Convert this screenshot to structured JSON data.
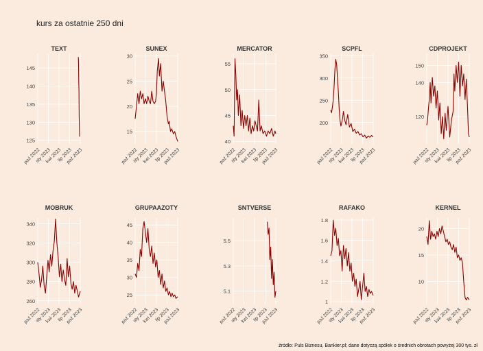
{
  "title": "kurs za ostatnie 250 dni",
  "source": "źródło: Puls Biznesu, Bankier.pl; dane dotyczą spółek o średnich obrotach powyżej 300 tys. zł",
  "colors": {
    "line": "#8b0000",
    "background": "#faebde",
    "grid": "#ffffff"
  },
  "x_tick_labels": [
    "paź 2022",
    "sty 2023",
    "kwi 2023",
    "lip 2023",
    "paź 2023"
  ],
  "chart_data": [
    {
      "type": "line",
      "title": "TEXT",
      "ylim": [
        124,
        149
      ],
      "yticks": [
        125,
        130,
        135,
        140,
        145
      ],
      "series": [
        {
          "x": [
            0.955,
            0.96,
            0.965,
            0.97,
            0.975,
            0.98,
            0.985
          ],
          "y": [
            148,
            146,
            141,
            139,
            132,
            128,
            126
          ]
        }
      ]
    },
    {
      "type": "line",
      "title": "SUNEX",
      "ylim": [
        12.5,
        30.5
      ],
      "yticks": [
        15,
        20,
        25,
        30
      ],
      "series": [
        {
          "x": [
            0,
            0.03,
            0.06,
            0.09,
            0.12,
            0.15,
            0.18,
            0.21,
            0.24,
            0.27,
            0.3,
            0.33,
            0.36,
            0.39,
            0.42,
            0.45,
            0.48,
            0.5,
            0.52,
            0.55,
            0.57,
            0.6,
            0.63,
            0.66,
            0.69,
            0.72,
            0.75,
            0.78,
            0.8,
            0.83,
            0.86,
            0.9,
            0.93,
            0.96,
            1.0
          ],
          "y": [
            17.5,
            20,
            22.5,
            20.5,
            23,
            21.5,
            22.5,
            20.5,
            21.5,
            20.5,
            22,
            21,
            20.5,
            23,
            21,
            20.5,
            21,
            22.5,
            27,
            29.5,
            26,
            28.5,
            23,
            25,
            23,
            21,
            18,
            16.5,
            17,
            15,
            15.5,
            14.5,
            15,
            14,
            13
          ]
        }
      ]
    },
    {
      "type": "line",
      "title": "MERCATOR",
      "ylim": [
        39.5,
        57
      ],
      "yticks": [
        40,
        45,
        50,
        55
      ],
      "series": [
        {
          "x": [
            0,
            0.02,
            0.04,
            0.06,
            0.08,
            0.1,
            0.12,
            0.15,
            0.18,
            0.21,
            0.24,
            0.27,
            0.3,
            0.33,
            0.36,
            0.39,
            0.42,
            0.45,
            0.48,
            0.51,
            0.54,
            0.57,
            0.6,
            0.63,
            0.66,
            0.7,
            0.74,
            0.78,
            0.82,
            0.86,
            0.9,
            0.94,
            0.98,
            1.0
          ],
          "y": [
            43,
            41,
            56,
            53,
            48,
            50,
            45,
            49,
            43,
            46,
            42.5,
            45,
            43,
            45,
            42,
            44.5,
            41.5,
            43,
            42,
            44,
            43,
            42,
            48,
            42,
            43,
            41.5,
            42,
            41,
            42,
            41.5,
            42.5,
            41,
            42,
            41.5
          ]
        }
      ]
    },
    {
      "type": "line",
      "title": "SCPFL",
      "ylim": [
        152,
        355
      ],
      "yticks": [
        200,
        250,
        300,
        350
      ],
      "series": [
        {
          "x": [
            0,
            0.02,
            0.04,
            0.06,
            0.08,
            0.1,
            0.12,
            0.14,
            0.16,
            0.18,
            0.2,
            0.22,
            0.24,
            0.26,
            0.28,
            0.3,
            0.33,
            0.36,
            0.4,
            0.44,
            0.48,
            0.52,
            0.56,
            0.6,
            0.64,
            0.68,
            0.72,
            0.76,
            0.8,
            0.84,
            0.88,
            0.92,
            0.96,
            1.0
          ],
          "y": [
            228,
            222,
            235,
            250,
            282,
            320,
            342,
            330,
            300,
            268,
            230,
            205,
            192,
            200,
            210,
            225,
            205,
            195,
            218,
            190,
            198,
            180,
            185,
            176,
            180,
            172,
            175,
            168,
            172,
            165,
            170,
            167,
            171,
            168
          ]
        }
      ]
    },
    {
      "type": "line",
      "title": "CDPROJEKT",
      "ylim": [
        104,
        157
      ],
      "yticks": [
        120,
        140,
        150
      ],
      "series": [
        {
          "x": [
            0,
            0.02,
            0.04,
            0.06,
            0.08,
            0.1,
            0.13,
            0.16,
            0.19,
            0.22,
            0.25,
            0.28,
            0.31,
            0.34,
            0.37,
            0.4,
            0.43,
            0.46,
            0.5,
            0.54,
            0.58,
            0.62,
            0.64,
            0.66,
            0.69,
            0.72,
            0.75,
            0.78,
            0.81,
            0.84,
            0.87,
            0.9,
            0.93,
            0.96,
            0.98,
            1.0
          ],
          "y": [
            115,
            118,
            125,
            130,
            140,
            128,
            143,
            132,
            138,
            125,
            135,
            118,
            128,
            110,
            120,
            107,
            122,
            112,
            126,
            108,
            118,
            123,
            145,
            135,
            150,
            140,
            152,
            132,
            150,
            138,
            145,
            130,
            142,
            125,
            110,
            108
          ]
        }
      ]
    }
  ],
  "chart_data_row2": [
    {
      "type": "line",
      "title": "MOBRUK",
      "ylim": [
        257,
        346
      ],
      "yticks": [
        260,
        280,
        300,
        320,
        340
      ],
      "series": [
        {
          "x": [
            0,
            0.03,
            0.06,
            0.09,
            0.12,
            0.15,
            0.18,
            0.21,
            0.24,
            0.27,
            0.3,
            0.33,
            0.36,
            0.39,
            0.42,
            0.45,
            0.48,
            0.51,
            0.54,
            0.57,
            0.6,
            0.63,
            0.66,
            0.69,
            0.72,
            0.75,
            0.78,
            0.81,
            0.84,
            0.87,
            0.9,
            0.93,
            0.96,
            1.0
          ],
          "y": [
            300,
            288,
            274,
            282,
            296,
            276,
            268,
            284,
            302,
            290,
            308,
            296,
            312,
            322,
            345,
            320,
            305,
            285,
            298,
            280,
            292,
            282,
            276,
            304,
            285,
            296,
            278,
            272,
            280,
            268,
            276,
            270,
            264,
            270
          ]
        }
      ]
    },
    {
      "type": "line",
      "title": "GRUPAAZOTY",
      "ylim": [
        22.5,
        47
      ],
      "yticks": [
        25,
        30,
        35,
        40,
        45
      ],
      "series": [
        {
          "x": [
            0,
            0.03,
            0.06,
            0.09,
            0.12,
            0.15,
            0.18,
            0.21,
            0.24,
            0.27,
            0.3,
            0.33,
            0.36,
            0.39,
            0.42,
            0.45,
            0.48,
            0.51,
            0.54,
            0.57,
            0.6,
            0.63,
            0.66,
            0.69,
            0.72,
            0.75,
            0.78,
            0.81,
            0.84,
            0.87,
            0.9,
            0.93,
            0.96,
            1.0
          ],
          "y": [
            31,
            30,
            34,
            32,
            38,
            36,
            44,
            46,
            43,
            40,
            44,
            38,
            36,
            39,
            34,
            37,
            33,
            35,
            30,
            32,
            28,
            31,
            27,
            29,
            26,
            27,
            25,
            26,
            24.5,
            25.5,
            24.5,
            25,
            24,
            24.5
          ]
        }
      ]
    },
    {
      "type": "line",
      "title": "SNTVERSE",
      "ylim": [
        5.0,
        5.68
      ],
      "yticks": [
        5.1,
        5.3,
        5.5
      ],
      "series": [
        {
          "x": [
            0.8,
            0.82,
            0.84,
            0.86,
            0.88,
            0.9,
            0.92,
            0.94,
            0.96,
            0.98,
            1.0
          ],
          "y": [
            5.65,
            5.55,
            5.6,
            5.35,
            5.45,
            5.2,
            5.35,
            5.15,
            5.25,
            5.05,
            5.1
          ]
        }
      ]
    },
    {
      "type": "line",
      "title": "RAFAKO",
      "ylim": [
        0.98,
        1.82
      ],
      "yticks": [
        1.0,
        1.2,
        1.4,
        1.6,
        1.8
      ],
      "series": [
        {
          "x": [
            0,
            0.03,
            0.06,
            0.09,
            0.12,
            0.15,
            0.18,
            0.21,
            0.24,
            0.27,
            0.3,
            0.33,
            0.36,
            0.39,
            0.42,
            0.45,
            0.48,
            0.51,
            0.54,
            0.57,
            0.6,
            0.63,
            0.66,
            0.69,
            0.72,
            0.75,
            0.78,
            0.81,
            0.84,
            0.87,
            0.9,
            0.93,
            0.96,
            1.0
          ],
          "y": [
            1.45,
            1.5,
            1.8,
            1.65,
            1.72,
            1.55,
            1.62,
            1.45,
            1.5,
            1.3,
            1.55,
            1.42,
            1.52,
            1.35,
            1.48,
            1.3,
            1.38,
            1.2,
            1.28,
            1.15,
            1.22,
            1.05,
            1.12,
            1.2,
            1.02,
            1.15,
            1.28,
            1.1,
            1.15,
            1.05,
            1.12,
            1.08,
            1.1,
            1.06
          ]
        }
      ]
    },
    {
      "type": "line",
      "title": "KERNEL",
      "ylim": [
        5.8,
        22
      ],
      "yticks": [
        10,
        15,
        20
      ],
      "series": [
        {
          "x": [
            0,
            0.03,
            0.06,
            0.09,
            0.12,
            0.15,
            0.18,
            0.21,
            0.24,
            0.27,
            0.3,
            0.33,
            0.36,
            0.39,
            0.42,
            0.45,
            0.48,
            0.51,
            0.54,
            0.57,
            0.6,
            0.63,
            0.66,
            0.69,
            0.72,
            0.75,
            0.78,
            0.81,
            0.84,
            0.87,
            0.9,
            0.93,
            0.96,
            1.0
          ],
          "y": [
            18.5,
            17,
            21.5,
            18,
            19.5,
            18.5,
            19,
            18,
            19.5,
            18.5,
            20,
            19,
            20.5,
            19.5,
            18.5,
            17.5,
            18,
            17,
            17.5,
            16.5,
            16,
            17,
            15.5,
            16.5,
            14.5,
            15,
            14,
            14.5,
            13.5,
            10,
            7,
            6.5,
            7,
            6.5
          ]
        }
      ]
    }
  ]
}
